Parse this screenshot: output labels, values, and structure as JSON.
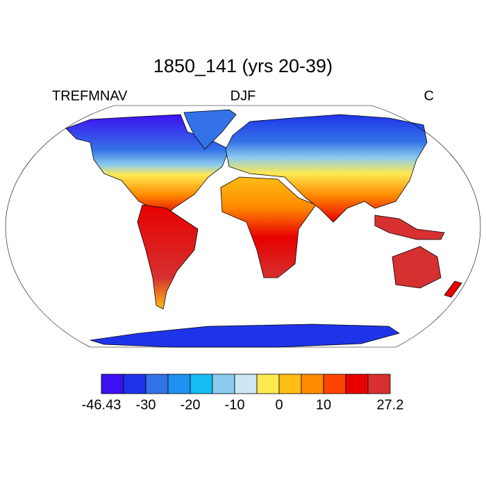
{
  "title": "1850_141 (yrs 20-39)",
  "left_label": "TREFMNAV",
  "center_label": "DJF",
  "right_label": "C",
  "colorbar": {
    "colors": [
      "#3d10f0",
      "#1f34e8",
      "#3472e8",
      "#1d90f0",
      "#16bcf3",
      "#8ccbee",
      "#cce6f6",
      "#ffe94f",
      "#ffbc14",
      "#ff8a00",
      "#ff4400",
      "#e80000",
      "#d73030"
    ],
    "levels": [
      -46.43,
      -35,
      -30,
      -25,
      -20,
      -15,
      -10,
      -5,
      0,
      5,
      10,
      15,
      20,
      27.2
    ],
    "ticks": [
      -46.43,
      -30,
      -20,
      -10,
      0,
      10,
      27.2
    ]
  }
}
